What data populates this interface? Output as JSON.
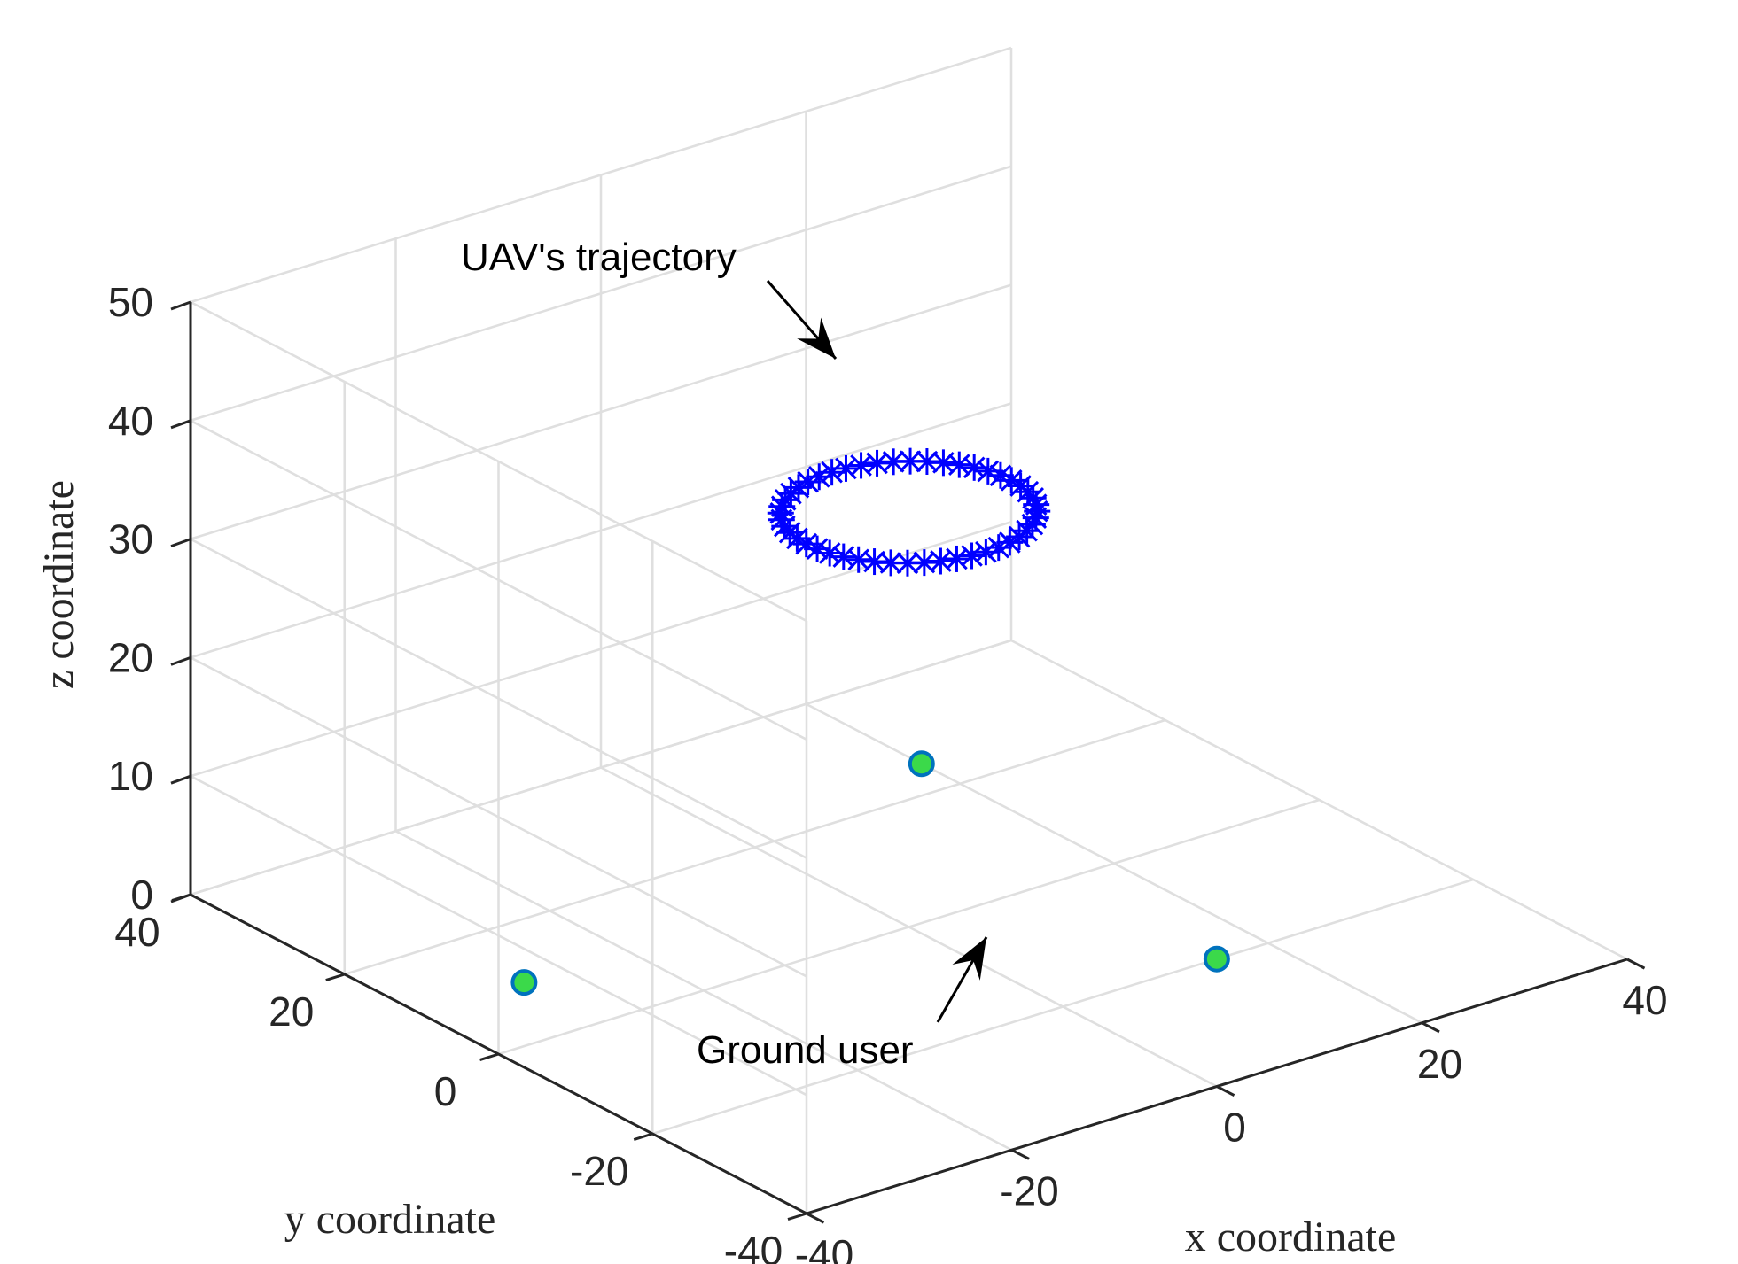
{
  "chart_data": {
    "type": "scatter3d",
    "title": "",
    "xlabel": "x coordinate",
    "ylabel": "y coordinate",
    "zlabel": "z coordinate",
    "xlim": [
      -40,
      40
    ],
    "ylim": [
      -40,
      40
    ],
    "zlim": [
      0,
      50
    ],
    "xticks": [
      -40,
      -20,
      0,
      20,
      40
    ],
    "yticks": [
      -40,
      -20,
      0,
      20,
      40
    ],
    "zticks": [
      0,
      10,
      20,
      30,
      40,
      50
    ],
    "grid": true,
    "view": {
      "azimuth": -37.5,
      "elevation": 30
    },
    "series": [
      {
        "marker": "asterisk",
        "color": "#0000ff",
        "trajectory": {
          "center": [
            0,
            0,
            35
          ],
          "radius": 10,
          "num_points": 48
        }
      },
      {
        "marker": "circle",
        "edge_color": "#0072bd",
        "face_color": "#3bd94a",
        "points": [
          {
            "x": -30,
            "y": 10,
            "z": 0
          },
          {
            "x": 20,
            "y": 25,
            "z": 0
          },
          {
            "x": 15,
            "y": -20,
            "z": 0
          }
        ]
      }
    ],
    "annotations": [
      {
        "text": "UAV's trajectory",
        "target": "trajectory"
      },
      {
        "text": "Ground user",
        "target": "ground"
      }
    ]
  },
  "colors": {
    "grid": "#dfdfdf",
    "axis": "#262626",
    "arrow": "#000000"
  }
}
